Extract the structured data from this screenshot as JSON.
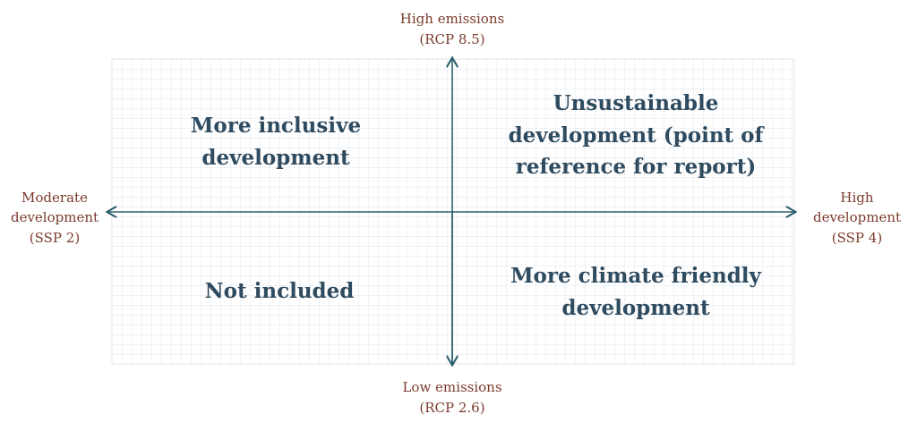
{
  "axes": {
    "top": {
      "lines": [
        "High emissions",
        "(RCP 8.5)"
      ]
    },
    "bottom": {
      "lines": [
        "Low emissions",
        "(RCP 2.6)"
      ]
    },
    "left": {
      "lines": [
        "Moderate",
        "development",
        "(SSP 2)"
      ]
    },
    "right": {
      "lines": [
        "High",
        "development",
        "(SSP 4)"
      ]
    }
  },
  "quadrants": {
    "top_left": {
      "lines": [
        "More inclusive",
        "development"
      ]
    },
    "top_right": {
      "lines": [
        "Unsustainable",
        "development (point of",
        "reference for report)"
      ]
    },
    "bottom_left": {
      "lines": [
        "Not included"
      ]
    },
    "bottom_right": {
      "lines": [
        "More climate friendly",
        "development"
      ]
    }
  }
}
